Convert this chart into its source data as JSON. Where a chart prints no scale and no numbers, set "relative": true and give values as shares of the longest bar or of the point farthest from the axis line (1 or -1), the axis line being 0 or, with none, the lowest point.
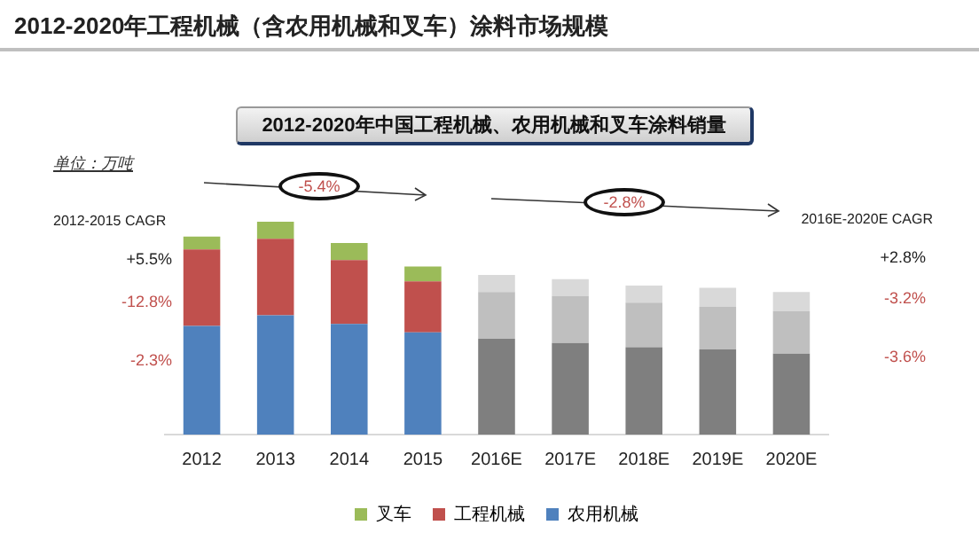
{
  "chart_data": {
    "type": "bar",
    "title": "2012-2020年工程机械（含农用机械和叉车）涂料市场规模",
    "subtitle": "2012-2020年中国工程机械、农用机械和叉车涂料销量",
    "categories": [
      "2012",
      "2013",
      "2014",
      "2015",
      "2016E",
      "2017E",
      "2018E",
      "2019E",
      "2020E"
    ],
    "relative": true,
    "stacked": true,
    "legend": "bottom",
    "grid": false,
    "series": [
      {
        "name": "农用机械",
        "color": "#4f81bd",
        "colors": [
          "#4f81bd",
          "#4f81bd",
          "#4f81bd",
          "#4f81bd",
          "#7f7f7f",
          "#7f7f7f",
          "#7f7f7f",
          "#7f7f7f",
          "#7f7f7f"
        ],
        "values": [
          0.51,
          0.56,
          0.52,
          0.48,
          0.45,
          0.43,
          0.41,
          0.4,
          0.38
        ]
      },
      {
        "name": "工程机械",
        "color": "#c0504d",
        "colors": [
          "#c0504d",
          "#c0504d",
          "#c0504d",
          "#c0504d",
          "#bfbfbf",
          "#bfbfbf",
          "#bfbfbf",
          "#bfbfbf",
          "#bfbfbf"
        ],
        "values": [
          0.36,
          0.36,
          0.3,
          0.24,
          0.22,
          0.22,
          0.21,
          0.2,
          0.2
        ]
      },
      {
        "name": "叉车",
        "color": "#9bbb59",
        "colors": [
          "#9bbb59",
          "#9bbb59",
          "#9bbb59",
          "#9bbb59",
          "#d9d9d9",
          "#d9d9d9",
          "#d9d9d9",
          "#d9d9d9",
          "#d9d9d9"
        ],
        "values": [
          0.06,
          0.08,
          0.08,
          0.07,
          0.08,
          0.08,
          0.08,
          0.09,
          0.09
        ]
      }
    ],
    "annotations": [
      "单位：万吨",
      "2012-2015 CAGR",
      "+5.5%",
      "-12.8%",
      "-2.3%",
      "2016E-2020E CAGR",
      "+2.8%",
      "-3.2%",
      "-3.6%",
      "-5.4%",
      "-2.8%"
    ]
  }
}
